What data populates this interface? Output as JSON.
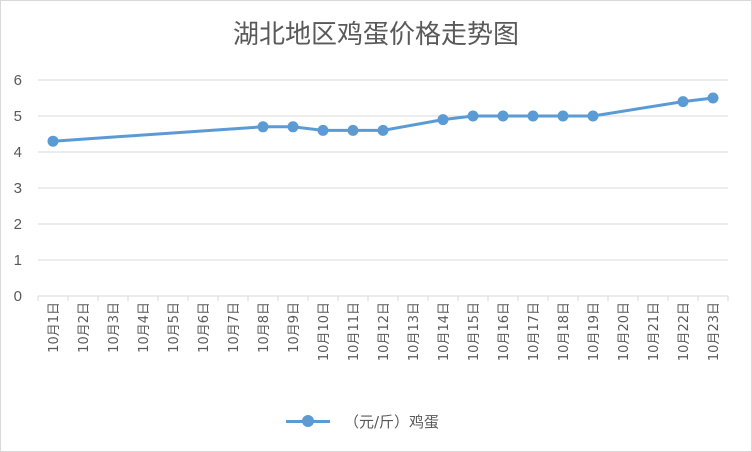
{
  "chart_data": {
    "type": "line",
    "title": "湖北地区鸡蛋价格走势图",
    "xlabel": "",
    "ylabel": "",
    "ylim": [
      0,
      6
    ],
    "yticks": [
      0,
      1,
      2,
      3,
      4,
      5,
      6
    ],
    "grid": true,
    "legend_position": "bottom",
    "categories": [
      "10月1日",
      "10月2日",
      "10月3日",
      "10月4日",
      "10月5日",
      "10月6日",
      "10月7日",
      "10月8日",
      "10月9日",
      "10月10日",
      "10月11日",
      "10月12日",
      "10月13日",
      "10月14日",
      "10月15日",
      "10月16日",
      "10月17日",
      "10月18日",
      "10月19日",
      "10月20日",
      "10月21日",
      "10月22日",
      "10月23日"
    ],
    "series": [
      {
        "name": "（元/斤）鸡蛋",
        "color": "#5b9bd5",
        "values": [
          4.3,
          null,
          null,
          null,
          null,
          null,
          null,
          4.7,
          4.7,
          4.6,
          4.6,
          4.6,
          null,
          4.9,
          5.0,
          5.0,
          5.0,
          5.0,
          5.0,
          null,
          null,
          5.4,
          5.5
        ]
      }
    ]
  }
}
